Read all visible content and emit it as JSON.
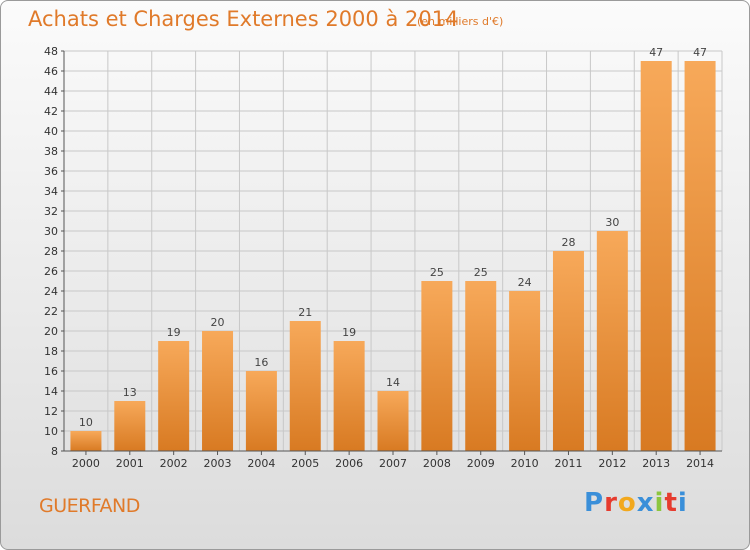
{
  "header": {
    "title": "Achats et Charges Externes 2000 à 2014",
    "subtitle": "(en milliers d'€)"
  },
  "footer": {
    "commune": "GUERFAND",
    "logo_text": "Proxiti",
    "logo_colors": [
      "#3a8fd9",
      "#e63b2e",
      "#f2a81d",
      "#3a8fd9",
      "#8cc63f",
      "#e63b2e",
      "#3a8fd9"
    ]
  },
  "colors": {
    "bar_top": "#f7a95a",
    "bar_bottom": "#d87a22",
    "accent": "#e07a2a"
  },
  "chart_data": {
    "type": "bar",
    "title": "Achats et Charges Externes 2000 à 2014",
    "subtitle": "(en milliers d'€)",
    "xlabel": "",
    "ylabel": "",
    "categories": [
      "2000",
      "2001",
      "2002",
      "2003",
      "2004",
      "2005",
      "2006",
      "2007",
      "2008",
      "2009",
      "2010",
      "2011",
      "2012",
      "2013",
      "2014"
    ],
    "values": [
      10,
      13,
      19,
      20,
      16,
      21,
      19,
      14,
      25,
      25,
      24,
      28,
      30,
      47,
      47
    ],
    "ylim": [
      8,
      48
    ],
    "yticks": [
      8,
      10,
      12,
      14,
      16,
      18,
      20,
      22,
      24,
      26,
      28,
      30,
      32,
      34,
      36,
      38,
      40,
      42,
      44,
      46,
      48
    ],
    "grid": true,
    "legend": "none"
  }
}
